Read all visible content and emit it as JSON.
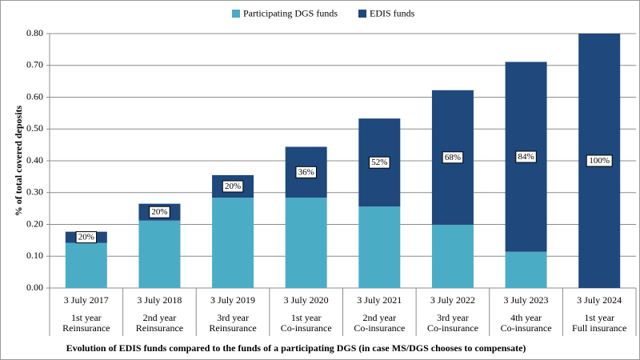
{
  "chart_data": {
    "type": "stacked_bar",
    "y_label": "% of total covered deposits",
    "caption": "Evolution of EDIS funds compared to the funds of a participating DGS (in case MS/DGS chooses to compensate)",
    "categories": [
      "3 July 2017",
      "3 July 2018",
      "3 July 2019",
      "3 July 2020",
      "3 July 2021",
      "3 July 2022",
      "3 July 2023",
      "3 July 2024"
    ],
    "category_phases": [
      [
        "1st year",
        "Reinsurance"
      ],
      [
        "2nd year",
        "Reinsurance"
      ],
      [
        "3rd year",
        "Reinsurance"
      ],
      [
        "1st year",
        "Co-insurance"
      ],
      [
        "2nd year",
        "Co-insurance"
      ],
      [
        "3rd year",
        "Co-insurance"
      ],
      [
        "4th year",
        "Co-insurance"
      ],
      [
        "1st year",
        "Full insurance"
      ]
    ],
    "series": [
      {
        "name": "Participating DGS funds",
        "color": "#4bacc6",
        "values": [
          0.142,
          0.212,
          0.284,
          0.284,
          0.256,
          0.199,
          0.114,
          0
        ]
      },
      {
        "name": "EDIS funds",
        "color": "#1f487c",
        "values": [
          0.035,
          0.053,
          0.071,
          0.16,
          0.277,
          0.423,
          0.597,
          0.8
        ],
        "share_labels": [
          "20%",
          "20%",
          "20%",
          "36%",
          "52%",
          "68%",
          "84%",
          "100%"
        ]
      }
    ],
    "ylim": [
      0,
      0.8
    ],
    "yticks": [
      {
        "value": 0,
        "label": "0.00"
      },
      {
        "value": 0.1,
        "label": "0.10"
      },
      {
        "value": 0.2,
        "label": "0.20"
      },
      {
        "value": 0.3,
        "label": "0.30"
      },
      {
        "value": 0.4,
        "label": "0.40"
      },
      {
        "value": 0.5,
        "label": "0.50"
      },
      {
        "value": 0.6,
        "label": "0.60"
      },
      {
        "value": 0.7,
        "label": "0.70"
      },
      {
        "value": 0.8,
        "label": "0.80"
      }
    ],
    "grid": true,
    "legend": "top"
  }
}
